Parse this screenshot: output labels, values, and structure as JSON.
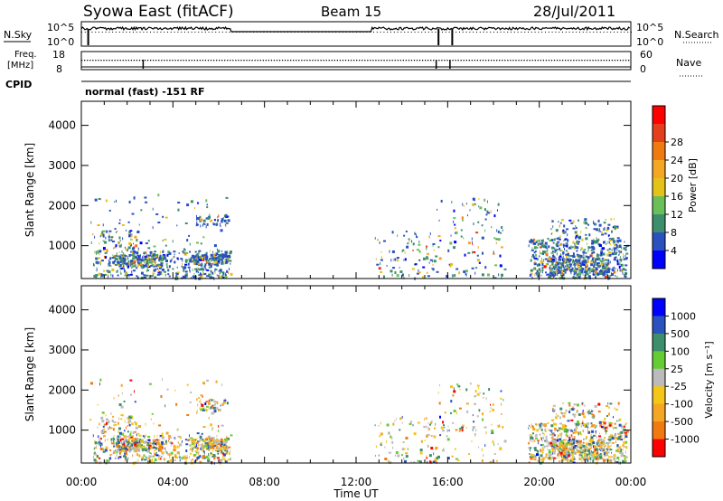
{
  "header": {
    "title": "Syowa East (fitACF)",
    "beam": "Beam 15",
    "date": "28/Jul/2011"
  },
  "top_panels": {
    "nsky_label": "N.Sky",
    "nsearch_label": "N.Search",
    "nsky_ticks": [
      "10^5",
      "10^0"
    ],
    "nsearch_ticks": [
      "10^5",
      "10^0"
    ],
    "freq_label_line1": "Freq.",
    "freq_label_line2": "[MHz]",
    "freq_ticks": [
      "18",
      "8"
    ],
    "nave_label": "Nave",
    "nave_ticks": [
      "60",
      "0"
    ],
    "cpid_label": "CPID",
    "mode_text": "normal (fast) -151 RF"
  },
  "chart_data": [
    {
      "type": "heatmap",
      "name": "power",
      "ylabel": "Slant Range [km]",
      "xlabel": "",
      "x_ticks": [
        "00:00",
        "04:00",
        "08:00",
        "12:00",
        "16:00",
        "20:00",
        "00:00"
      ],
      "y_ticks": [
        "1000",
        "2000",
        "3000",
        "4000"
      ],
      "ylim": [
        180,
        4600
      ],
      "xlim_hours": [
        0,
        24
      ],
      "colorbar": {
        "label": "Power [dB]",
        "ticks": [
          "4",
          "8",
          "12",
          "16",
          "20",
          "24",
          "28"
        ],
        "colors": [
          "#0000ff",
          "#2a52be",
          "#3c8e6c",
          "#6bbf59",
          "#e5c21a",
          "#f5a623",
          "#f07a10",
          "#e53e1a",
          "#ff0000"
        ]
      },
      "data_gaps_hours": [
        [
          6.5,
          12.7
        ]
      ]
    },
    {
      "type": "heatmap",
      "name": "velocity",
      "ylabel": "Slant Range [km]",
      "xlabel": "Time UT",
      "x_ticks": [
        "00:00",
        "04:00",
        "08:00",
        "12:00",
        "16:00",
        "20:00",
        "00:00"
      ],
      "y_ticks": [
        "1000",
        "2000",
        "3000",
        "4000"
      ],
      "ylim": [
        180,
        4600
      ],
      "xlim_hours": [
        0,
        24
      ],
      "colorbar": {
        "label": "Velocity [m s⁻¹]",
        "ticks": [
          "1000",
          "500",
          "100",
          "25",
          "-25",
          "-100",
          "-500",
          "-1000"
        ],
        "colors": [
          "#0000ff",
          "#2a52be",
          "#3c8e6c",
          "#66cc33",
          "#bbbbbb",
          "#f5c518",
          "#f5a623",
          "#f07a10",
          "#ff0000"
        ]
      },
      "data_gaps_hours": [
        [
          6.5,
          12.7
        ]
      ]
    }
  ]
}
